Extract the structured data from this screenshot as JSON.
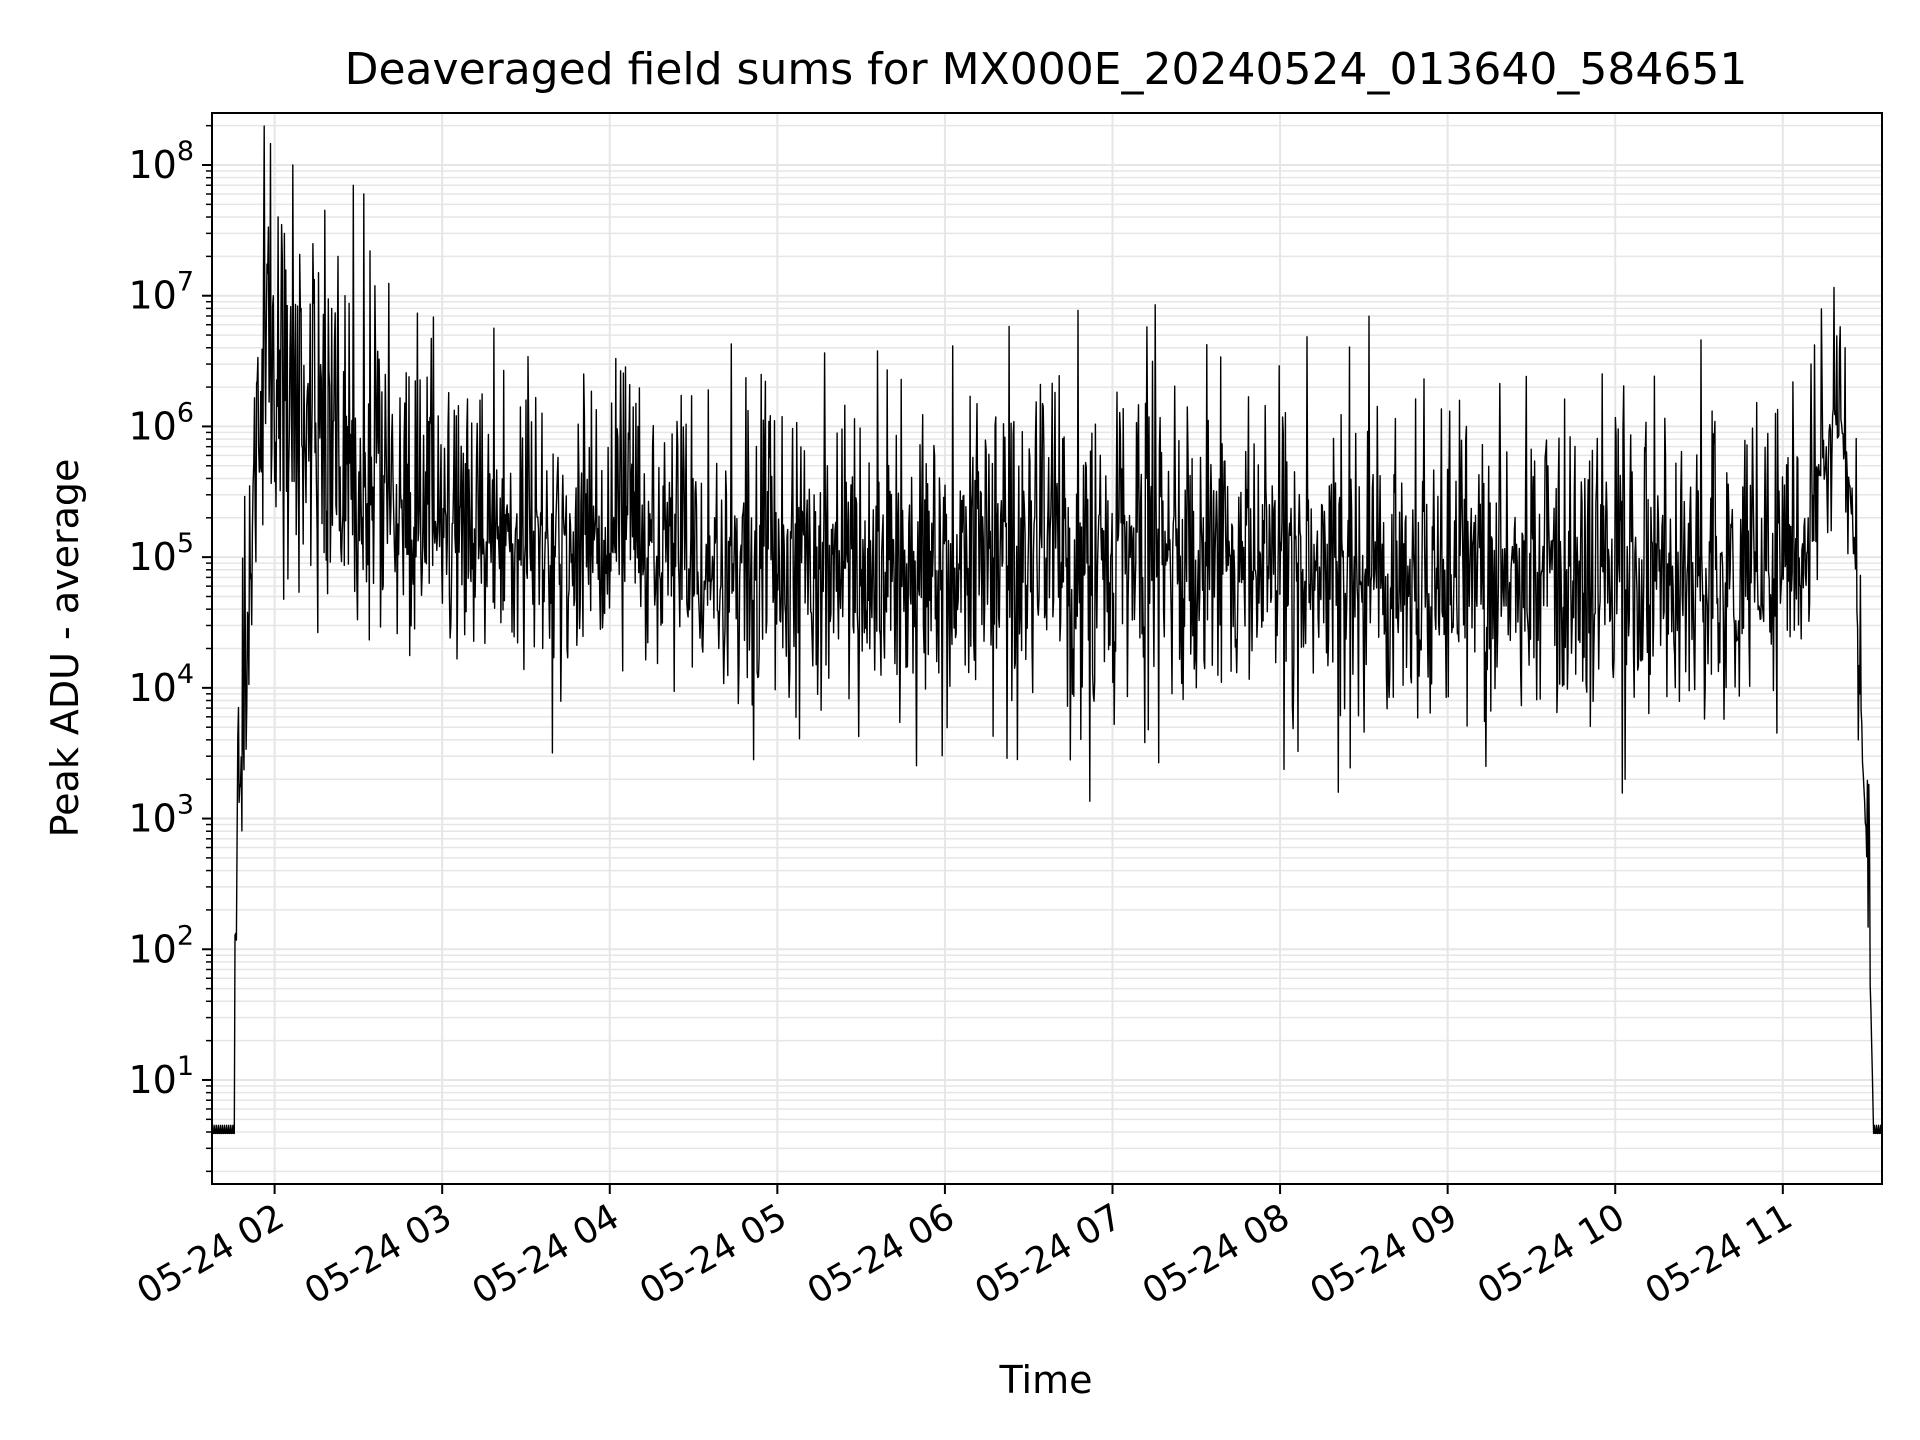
{
  "chart_data": {
    "type": "line",
    "title": "Deaveraged field sums for MX000E_20240524_013640_584651",
    "xlabel": "Time",
    "ylabel": "Peak ADU - average",
    "x_tick_labels": [
      "05-24 02",
      "05-24 03",
      "05-24 04",
      "05-24 05",
      "05-24 06",
      "05-24 07",
      "05-24 08",
      "05-24 09",
      "05-24 10",
      "05-24 11"
    ],
    "x_tick_hours": [
      2,
      3,
      4,
      5,
      6,
      7,
      8,
      9,
      10,
      11
    ],
    "xlim_hours": [
      1.6264,
      11.5919
    ],
    "y_scale": "log",
    "ylim": [
      1.6,
      250000000
    ],
    "y_tick_labels": [
      {
        "base": "10",
        "exp": "1",
        "value": 10
      },
      {
        "base": "10",
        "exp": "2",
        "value": 100
      },
      {
        "base": "10",
        "exp": "3",
        "value": 1000
      },
      {
        "base": "10",
        "exp": "4",
        "value": 10000
      },
      {
        "base": "10",
        "exp": "5",
        "value": 100000
      },
      {
        "base": "10",
        "exp": "6",
        "value": 1000000
      },
      {
        "base": "10",
        "exp": "7",
        "value": 10000000
      },
      {
        "base": "10",
        "exp": "8",
        "value": 100000000
      }
    ],
    "grid": true,
    "line_color": "#000000",
    "grid_color": "#e6e6e6",
    "profile": [
      [
        1.6264,
        4
      ],
      [
        1.76,
        4
      ],
      [
        1.762,
        150
      ],
      [
        1.78,
        700
      ],
      [
        1.8,
        2000
      ],
      [
        1.83,
        20000
      ],
      [
        1.88,
        300000
      ],
      [
        1.93,
        1000000
      ],
      [
        1.97,
        1300000
      ],
      [
        2.05,
        900000
      ],
      [
        2.2,
        600000
      ],
      [
        2.4,
        350000
      ],
      [
        2.6,
        200000
      ],
      [
        2.8,
        150000
      ],
      [
        3.0,
        140000
      ],
      [
        3.2,
        140000
      ],
      [
        3.4,
        120000
      ],
      [
        3.55,
        110000
      ],
      [
        3.8,
        100000
      ],
      [
        4.2,
        90000
      ],
      [
        4.6,
        75000
      ],
      [
        5.0,
        65000
      ],
      [
        5.5,
        70000
      ],
      [
        6.0,
        75000
      ],
      [
        6.5,
        70000
      ],
      [
        7.0,
        75000
      ],
      [
        7.5,
        80000
      ],
      [
        8.0,
        70000
      ],
      [
        8.5,
        55000
      ],
      [
        9.0,
        50000
      ],
      [
        9.5,
        50000
      ],
      [
        10.0,
        50000
      ],
      [
        10.5,
        55000
      ],
      [
        11.0,
        60000
      ],
      [
        11.1,
        100000
      ],
      [
        11.2,
        300000
      ],
      [
        11.3,
        1000000
      ],
      [
        11.35,
        900000
      ],
      [
        11.42,
        200000
      ],
      [
        11.47,
        5000
      ],
      [
        11.5,
        500
      ],
      [
        11.53,
        20
      ],
      [
        11.542,
        4
      ],
      [
        11.5919,
        4
      ]
    ],
    "variability": [
      [
        1.6,
        0.15
      ],
      [
        1.95,
        0.6
      ],
      [
        2.5,
        0.55
      ],
      [
        2.7,
        0.35
      ],
      [
        3.5,
        0.3
      ],
      [
        4.5,
        0.35
      ],
      [
        5.0,
        0.45
      ],
      [
        6.0,
        0.5
      ],
      [
        7.5,
        0.5
      ],
      [
        8.5,
        0.45
      ],
      [
        9.5,
        0.4
      ],
      [
        10.5,
        0.45
      ],
      [
        11.1,
        0.3
      ],
      [
        11.3,
        0.1
      ],
      [
        11.6,
        0.05
      ]
    ],
    "spikes": [
      [
        1.99,
        10000000
      ],
      [
        2.02,
        40000000
      ],
      [
        2.04,
        35000000
      ],
      [
        2.06,
        30000000
      ],
      [
        2.09,
        4000000
      ],
      [
        2.11,
        100000000
      ],
      [
        2.16,
        8000000
      ],
      [
        2.23,
        25000000
      ],
      [
        2.26,
        15000000
      ],
      [
        2.3,
        45000000
      ],
      [
        2.34,
        8000000
      ],
      [
        2.38,
        20000000
      ],
      [
        2.42,
        10000000
      ],
      [
        2.47,
        70000000
      ],
      [
        2.53,
        60000000
      ],
      [
        2.57,
        22000000
      ],
      [
        2.66,
        2500000
      ],
      [
        2.7,
        800000
      ],
      [
        11.17,
        3000000
      ],
      [
        5.3,
        500000
      ],
      [
        6.2,
        450000
      ],
      [
        7.2,
        400000
      ],
      [
        8.3,
        250000
      ],
      [
        9.6,
        500000
      ],
      [
        10.3,
        600000
      ]
    ],
    "dips": [
      [
        3.05,
        30000
      ],
      [
        3.6,
        20000
      ],
      [
        4.65,
        20000
      ],
      [
        5.9,
        18000
      ],
      [
        7.0,
        11000
      ],
      [
        7.5,
        10000
      ],
      [
        7.65,
        11000
      ],
      [
        8.2,
        13000
      ],
      [
        9.99,
        12000
      ]
    ]
  }
}
